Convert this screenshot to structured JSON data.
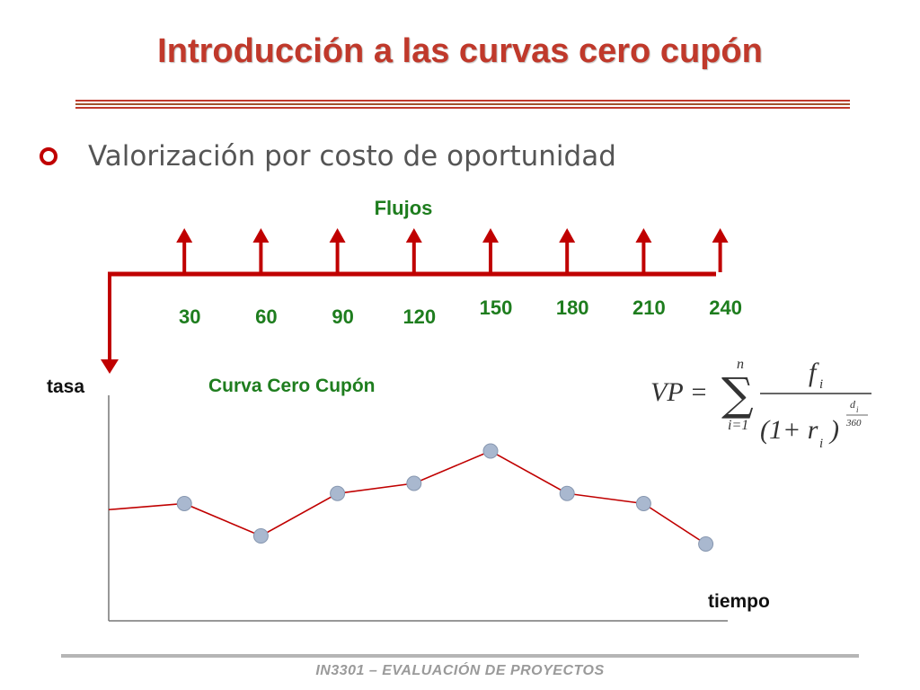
{
  "title": "Introducción a las curvas cero cupón",
  "bullet": "Valorización por costo de oportunidad",
  "flows": {
    "label": "Flujos",
    "days": [
      "30",
      "60",
      "90",
      "120",
      "150",
      "180",
      "210",
      "240"
    ]
  },
  "curve": {
    "label": "Curva Cero Cupón",
    "y_axis_label": "tasa",
    "x_axis_label": "tiempo",
    "points": [
      {
        "t": 30,
        "r": 0.58
      },
      {
        "t": 60,
        "r": 0.42
      },
      {
        "t": 90,
        "r": 0.63
      },
      {
        "t": 120,
        "r": 0.68
      },
      {
        "t": 150,
        "r": 0.84
      },
      {
        "t": 180,
        "r": 0.63
      },
      {
        "t": 210,
        "r": 0.58
      },
      {
        "t": 240,
        "r": 0.38
      }
    ],
    "start_r": 0.55
  },
  "formula": {
    "lhs": "VP =",
    "sum_top": "n",
    "sum_bottom": "i=1",
    "numerator": "f",
    "numerator_sub": "i",
    "denominator_open": "(1+ r",
    "denominator_sub": "i",
    "denominator_close": ")",
    "exp_top": "d",
    "exp_top_sub": "i",
    "exp_bottom": "360"
  },
  "footer": "IN3301 – EVALUACIÓN DE PROYECTOS",
  "colors": {
    "title": "#c0392b",
    "arrow": "#c00000",
    "green": "#1e7d1e",
    "curve_line": "#c00000",
    "point_fill": "#a9b8cf"
  }
}
